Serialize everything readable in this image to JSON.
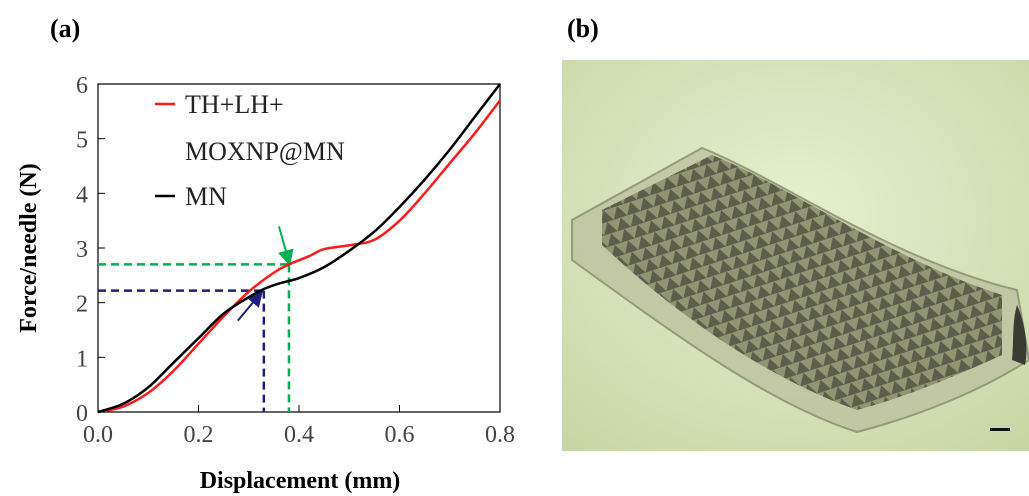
{
  "panels": {
    "a": "(a)",
    "b": "(b)"
  },
  "chart_data": {
    "type": "line",
    "xlabel": "Displacement (mm)",
    "ylabel": "Force/needle (N)",
    "xlim": [
      0.0,
      0.8
    ],
    "ylim": [
      0,
      6
    ],
    "xticks": [
      "0.0",
      "0.2",
      "0.4",
      "0.6",
      "0.8"
    ],
    "yticks": [
      "0",
      "1",
      "2",
      "3",
      "4",
      "5",
      "6"
    ],
    "grid": false,
    "legend_position": "top-left",
    "legend": [
      "TH+LH+",
      "MOXNP@MN",
      "MN"
    ],
    "series": [
      {
        "name": "TH+LH+ MOXNP@MN",
        "color": "#ff1a1a",
        "x": [
          0.0,
          0.05,
          0.1,
          0.15,
          0.2,
          0.25,
          0.3,
          0.35,
          0.38,
          0.42,
          0.45,
          0.5,
          0.55,
          0.6,
          0.65,
          0.7,
          0.75,
          0.8
        ],
        "y": [
          0.0,
          0.1,
          0.35,
          0.75,
          1.25,
          1.75,
          2.2,
          2.55,
          2.7,
          2.85,
          2.98,
          3.05,
          3.15,
          3.5,
          4.0,
          4.55,
          5.1,
          5.7
        ]
      },
      {
        "name": "MN",
        "color": "#000000",
        "x": [
          0.0,
          0.05,
          0.1,
          0.15,
          0.2,
          0.25,
          0.3,
          0.33,
          0.36,
          0.4,
          0.45,
          0.5,
          0.55,
          0.6,
          0.65,
          0.7,
          0.75,
          0.8
        ],
        "y": [
          0.0,
          0.15,
          0.45,
          0.9,
          1.35,
          1.8,
          2.1,
          2.25,
          2.35,
          2.45,
          2.65,
          2.95,
          3.3,
          3.75,
          4.25,
          4.8,
          5.4,
          6.0
        ]
      }
    ],
    "annotations": [
      {
        "kind": "dashed-guide",
        "color": "#00b050",
        "x": 0.38,
        "y": 2.7
      },
      {
        "kind": "dashed-guide",
        "color": "#1f1f7a",
        "x": 0.33,
        "y": 2.22
      },
      {
        "kind": "arrow",
        "color": "#00b050",
        "x": 0.38,
        "y": 2.7,
        "from": "above"
      },
      {
        "kind": "arrow",
        "color": "#1f1f7a",
        "x": 0.33,
        "y": 2.22,
        "from": "below-left"
      }
    ]
  },
  "image_b": {
    "description_icon": "microneedle-array-photo",
    "scale_bar": true
  }
}
